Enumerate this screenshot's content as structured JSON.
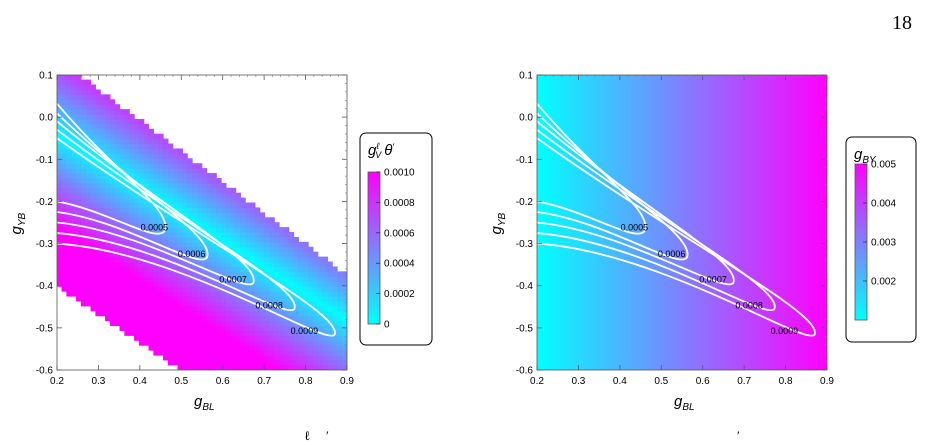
{
  "page": {
    "number": "18"
  },
  "caption_fragments": [
    "ℓ",
    "′",
    "′"
  ],
  "chart_data": [
    {
      "type": "heatmap",
      "xlabel_main": "g",
      "xlabel_sub": "BL",
      "ylabel_main": "g",
      "ylabel_sub": "YB",
      "xlim": [
        0.2,
        0.9
      ],
      "ylim": [
        -0.6,
        0.1
      ],
      "x_ticks": [
        "0.2",
        "0.3",
        "0.4",
        "0.5",
        "0.6",
        "0.7",
        "0.8",
        "0.9"
      ],
      "y_ticks": [
        "0.1",
        "0.0",
        "-0.1",
        "-0.2",
        "-0.3",
        "-0.4",
        "-0.5",
        "-0.6"
      ],
      "colormap": [
        "#00ffff",
        "#ff00ff"
      ],
      "region": "band",
      "color_field": "distance-from-valley",
      "legend": {
        "title_main": "g",
        "title_sup": "ℓ",
        "title_sub": "V",
        "title_rest": "θ",
        "title_prime": "′",
        "range": [
          0,
          0.001
        ],
        "ticks": [
          "0.0010",
          "0.0008",
          "0.0006",
          "0.0004",
          "0.0002",
          "0"
        ]
      },
      "contours": [
        {
          "label": "0.0005",
          "label_x": 0.435,
          "label_y": -0.262
        },
        {
          "label": "0.0006",
          "label_x": 0.525,
          "label_y": -0.325
        },
        {
          "label": "0.0007",
          "label_x": 0.625,
          "label_y": -0.385
        },
        {
          "label": "0.0008",
          "label_x": 0.712,
          "label_y": -0.447
        },
        {
          "label": "0.0009",
          "label_x": 0.797,
          "label_y": -0.508
        }
      ]
    },
    {
      "type": "heatmap",
      "xlabel_main": "g",
      "xlabel_sub": "BL",
      "ylabel_main": "g",
      "ylabel_sub": "YB",
      "xlim": [
        0.2,
        0.9
      ],
      "ylim": [
        -0.6,
        0.1
      ],
      "x_ticks": [
        "0.2",
        "0.3",
        "0.4",
        "0.5",
        "0.6",
        "0.7",
        "0.8",
        "0.9"
      ],
      "y_ticks": [
        "0.1",
        "0.0",
        "-0.1",
        "-0.2",
        "-0.3",
        "-0.4",
        "-0.5",
        "-0.6"
      ],
      "colormap": [
        "#00ffff",
        "#ff00ff"
      ],
      "region": "full",
      "color_field": "horizontal",
      "legend": {
        "title_main": "g",
        "title_sub": "BY",
        "range": [
          0.001,
          0.005
        ],
        "ticks": [
          "0.005",
          "0.004",
          "0.003",
          "0.002"
        ]
      },
      "contours": [
        {
          "label": "0.0005",
          "label_x": 0.435,
          "label_y": -0.262
        },
        {
          "label": "0.0006",
          "label_x": 0.525,
          "label_y": -0.325
        },
        {
          "label": "0.0007",
          "label_x": 0.625,
          "label_y": -0.385
        },
        {
          "label": "0.0008",
          "label_x": 0.712,
          "label_y": -0.447
        },
        {
          "label": "0.0009",
          "label_x": 0.797,
          "label_y": -0.508
        }
      ]
    }
  ]
}
